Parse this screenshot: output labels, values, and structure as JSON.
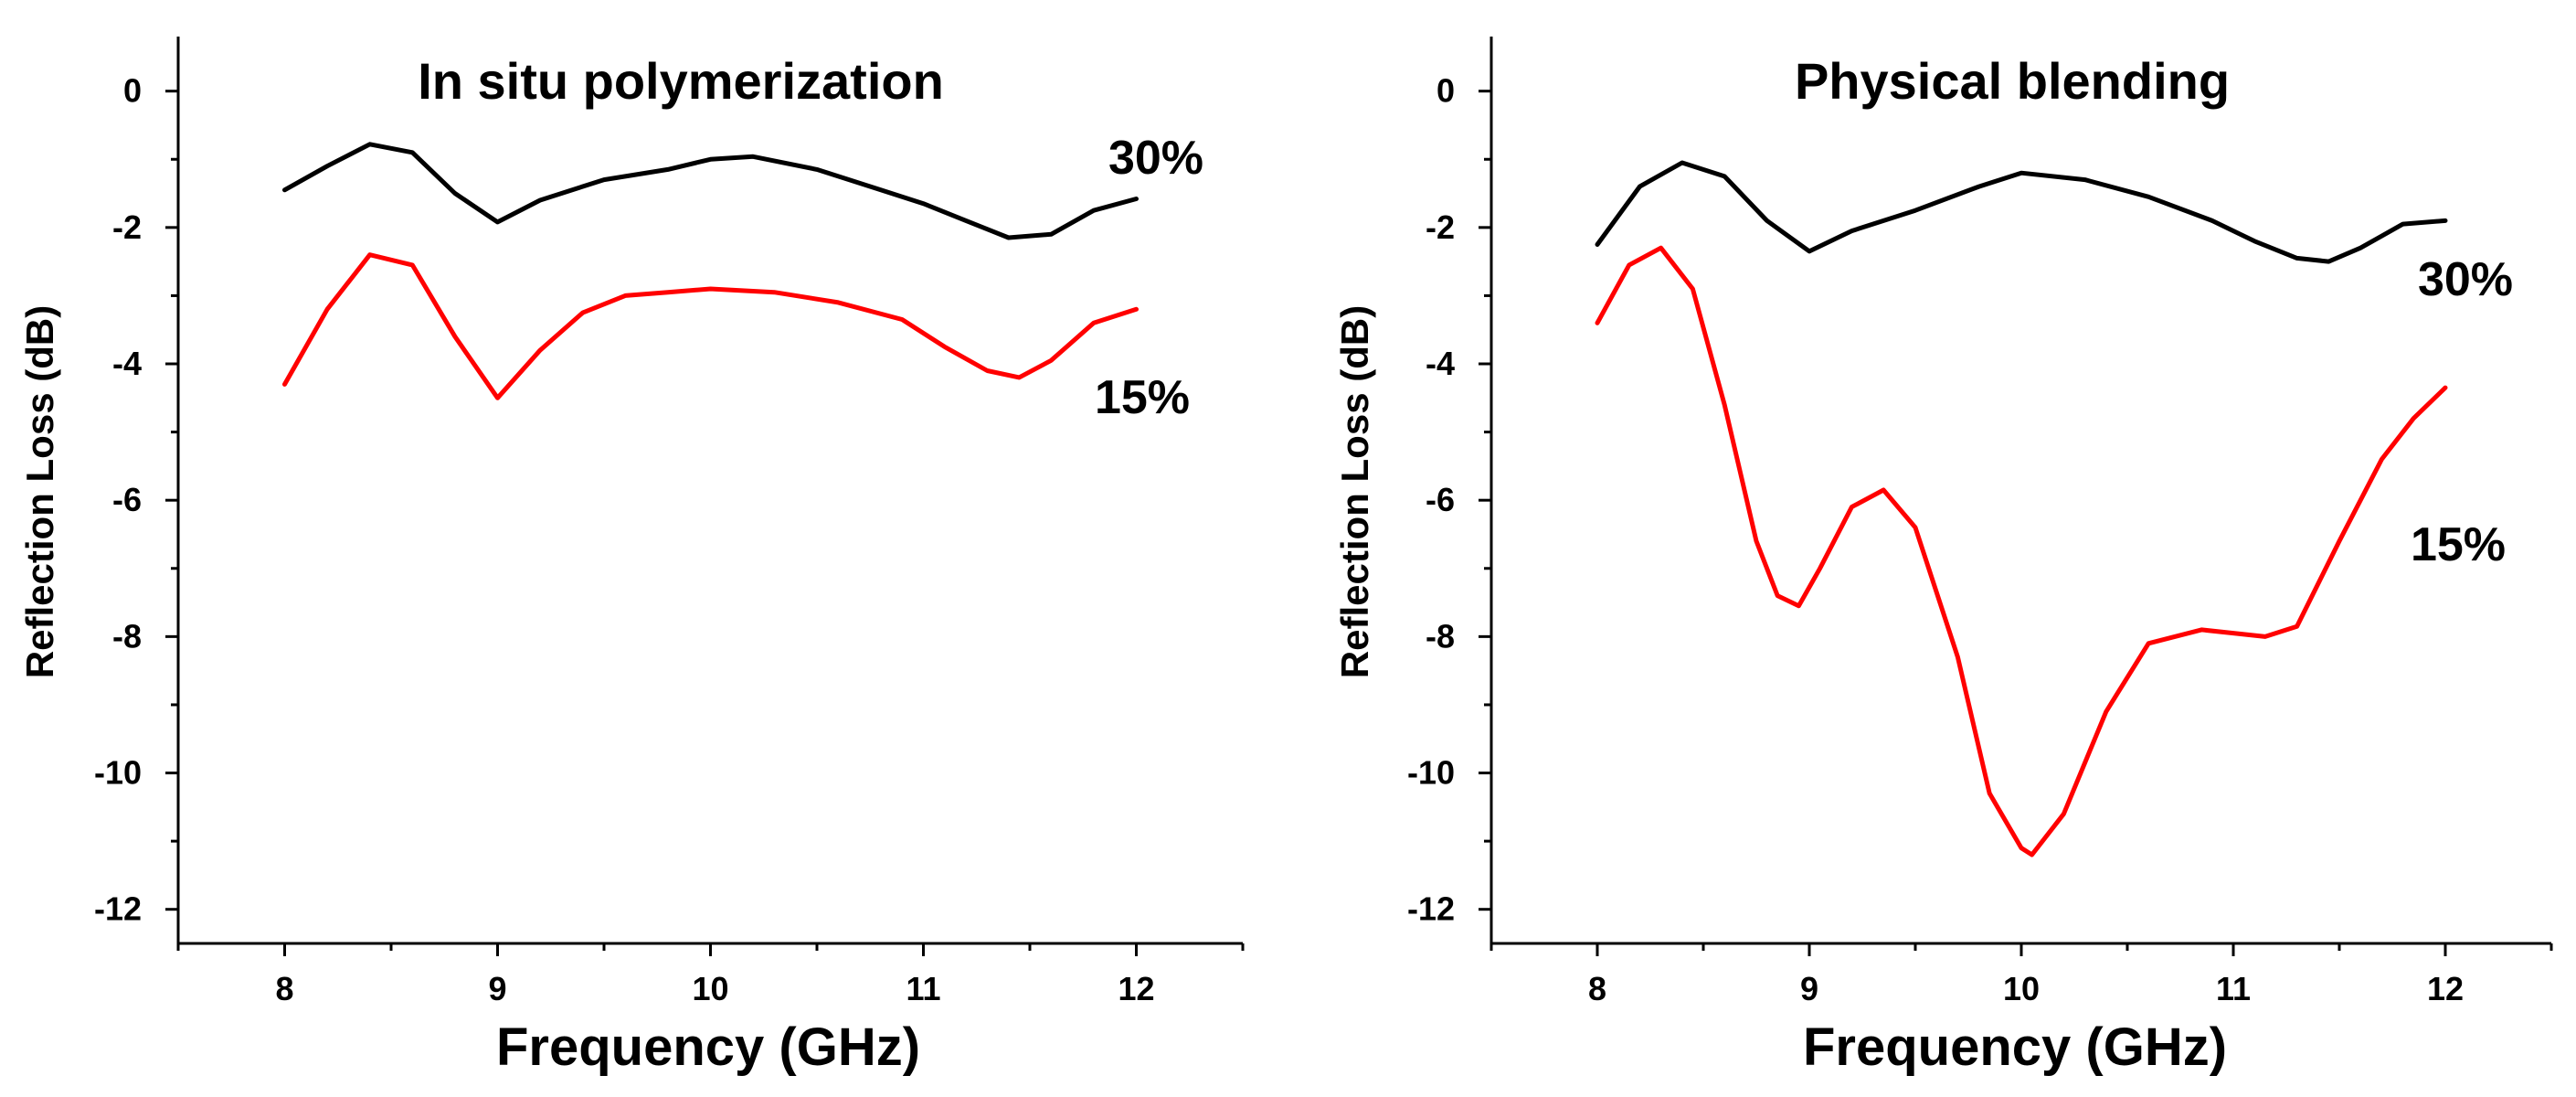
{
  "chart_data": [
    {
      "type": "line",
      "title": "In situ polymerization",
      "xlabel": "Frequency (GHz)",
      "ylabel": "Reflection Loss (dB)",
      "xlim": [
        7.5,
        12.5
      ],
      "ylim": [
        -12.5,
        0.8
      ],
      "xticks": [
        8,
        9,
        10,
        11,
        12
      ],
      "xtick_labels": [
        "8",
        "9",
        "10",
        "11",
        "12"
      ],
      "yticks": [
        0,
        -2,
        -4,
        -6,
        -8,
        -10,
        -12
      ],
      "ytick_labels": [
        "0",
        "-2",
        "-4",
        "-6",
        "-8",
        "-10",
        "-12"
      ],
      "series": [
        {
          "name": "30%",
          "label": "30%",
          "color": "#000000",
          "x": [
            8.0,
            8.2,
            8.4,
            8.6,
            8.8,
            9.0,
            9.2,
            9.5,
            9.8,
            10.0,
            10.2,
            10.5,
            10.8,
            11.0,
            11.2,
            11.4,
            11.6,
            11.8,
            12.0
          ],
          "y": [
            -1.45,
            -1.1,
            -0.78,
            -0.9,
            -1.5,
            -1.92,
            -1.6,
            -1.3,
            -1.15,
            -1.0,
            -0.96,
            -1.15,
            -1.45,
            -1.65,
            -1.9,
            -2.15,
            -2.1,
            -1.75,
            -1.58
          ]
        },
        {
          "name": "15%",
          "label": "15%",
          "color": "#ff0000",
          "x": [
            8.0,
            8.2,
            8.4,
            8.6,
            8.8,
            9.0,
            9.2,
            9.4,
            9.6,
            9.8,
            10.0,
            10.3,
            10.6,
            10.9,
            11.1,
            11.3,
            11.45,
            11.6,
            11.8,
            12.0
          ],
          "y": [
            -4.3,
            -3.2,
            -2.4,
            -2.55,
            -3.6,
            -4.5,
            -3.8,
            -3.25,
            -3.0,
            -2.95,
            -2.9,
            -2.95,
            -3.1,
            -3.35,
            -3.75,
            -4.1,
            -4.2,
            -3.95,
            -3.4,
            -3.2
          ]
        }
      ]
    },
    {
      "type": "line",
      "title": "Physical blending",
      "xlabel": "Frequency (GHz)",
      "ylabel": "Reflection Loss (dB)",
      "xlim": [
        7.5,
        12.5
      ],
      "ylim": [
        -12.5,
        0.8
      ],
      "xticks": [
        8,
        9,
        10,
        11,
        12
      ],
      "xtick_labels": [
        "8",
        "9",
        "10",
        "11",
        "12"
      ],
      "yticks": [
        0,
        -2,
        -4,
        -6,
        -8,
        -10,
        -12
      ],
      "ytick_labels": [
        "0",
        "-2",
        "-4",
        "-6",
        "-8",
        "-10",
        "-12"
      ],
      "series": [
        {
          "name": "30%",
          "label": "30%",
          "color": "#000000",
          "x": [
            8.0,
            8.2,
            8.4,
            8.6,
            8.8,
            9.0,
            9.2,
            9.5,
            9.8,
            10.0,
            10.3,
            10.6,
            10.9,
            11.1,
            11.3,
            11.45,
            11.6,
            11.8,
            12.0
          ],
          "y": [
            -2.25,
            -1.4,
            -1.05,
            -1.25,
            -1.9,
            -2.35,
            -2.05,
            -1.75,
            -1.4,
            -1.2,
            -1.3,
            -1.55,
            -1.9,
            -2.2,
            -2.45,
            -2.5,
            -2.3,
            -1.95,
            -1.9
          ]
        },
        {
          "name": "15%",
          "label": "15%",
          "color": "#ff0000",
          "x": [
            8.0,
            8.15,
            8.3,
            8.45,
            8.6,
            8.75,
            8.85,
            8.95,
            9.05,
            9.2,
            9.35,
            9.5,
            9.7,
            9.85,
            10.0,
            10.05,
            10.2,
            10.4,
            10.6,
            10.85,
            11.0,
            11.15,
            11.3,
            11.5,
            11.7,
            11.85,
            12.0
          ],
          "y": [
            -3.4,
            -2.55,
            -2.3,
            -2.9,
            -4.6,
            -6.6,
            -7.4,
            -7.55,
            -7.0,
            -6.1,
            -5.85,
            -6.4,
            -8.3,
            -10.3,
            -11.1,
            -11.2,
            -10.6,
            -9.1,
            -8.1,
            -7.9,
            -7.95,
            -8.0,
            -7.85,
            -6.6,
            -5.4,
            -4.8,
            -4.35
          ]
        }
      ]
    }
  ]
}
